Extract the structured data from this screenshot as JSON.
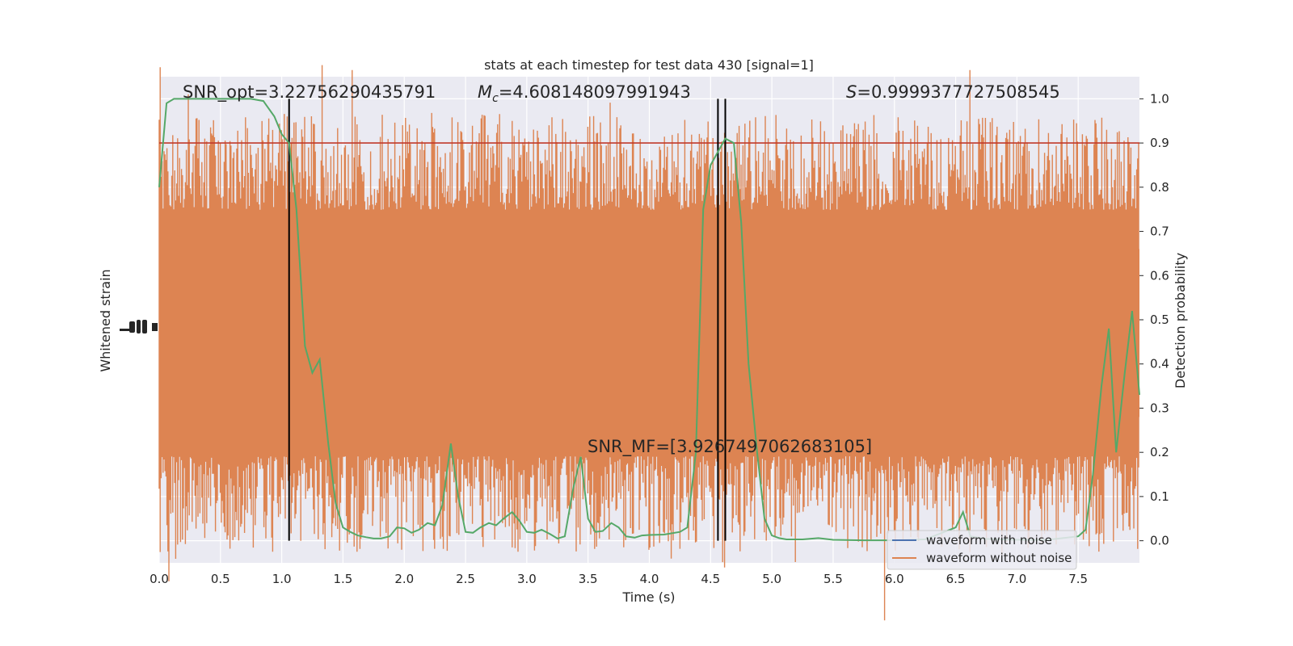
{
  "chart_data": {
    "type": "line",
    "title": "stats at each timestep for test data 430 [signal=1]",
    "xlabel": "Time (s)",
    "ylabel_left": "Whitened strain",
    "ylabel_right": "Detection probability",
    "xlim": [
      0.0,
      8.0
    ],
    "ylim_right": [
      -0.05,
      1.05
    ],
    "x_ticks": [
      "0.0",
      "0.5",
      "1.0",
      "1.5",
      "2.0",
      "2.5",
      "3.0",
      "3.5",
      "4.0",
      "4.5",
      "5.0",
      "5.5",
      "6.0",
      "6.5",
      "7.0",
      "7.5"
    ],
    "y_ticks_right": [
      "0.0",
      "0.1",
      "0.2",
      "0.3",
      "0.4",
      "0.5",
      "0.6",
      "0.7",
      "0.8",
      "0.9",
      "1.0"
    ],
    "grid": true,
    "background": "#eaeaf2",
    "annotations": {
      "snr_opt": "SNR_opt=3.22756290435791",
      "mc_symbol": "M",
      "mc_sub": "c",
      "mc_value": "=4.608148097991943",
      "s_symbol": "S",
      "s_value": "=0.9999377727508545",
      "snr_mf": "SNR_MF=[3.9267497062683105]"
    },
    "threshold": {
      "y": 0.9,
      "color": "#c0392b"
    },
    "vertical_lines": [
      1.06,
      4.56,
      4.62
    ],
    "series": [
      {
        "name": "waveform with noise",
        "color": "#4c72b0"
      },
      {
        "name": "waveform without noise",
        "color": "#dd8452"
      }
    ],
    "probability_series": {
      "color": "#55a868",
      "x": [
        0.0,
        0.06,
        0.12,
        0.25,
        0.5,
        0.75,
        0.85,
        0.94,
        1.0,
        1.06,
        1.12,
        1.19,
        1.25,
        1.31,
        1.38,
        1.44,
        1.5,
        1.56,
        1.62,
        1.69,
        1.75,
        1.81,
        1.88,
        1.94,
        2.0,
        2.06,
        2.12,
        2.19,
        2.25,
        2.31,
        2.38,
        2.44,
        2.5,
        2.56,
        2.62,
        2.69,
        2.75,
        2.81,
        2.88,
        2.94,
        3.0,
        3.06,
        3.12,
        3.19,
        3.25,
        3.31,
        3.38,
        3.44,
        3.5,
        3.56,
        3.62,
        3.69,
        3.75,
        3.81,
        3.88,
        3.94,
        4.0,
        4.12,
        4.25,
        4.31,
        4.38,
        4.44,
        4.5,
        4.56,
        4.62,
        4.69,
        4.75,
        4.81,
        4.88,
        4.94,
        5.0,
        5.06,
        5.12,
        5.25,
        5.38,
        5.5,
        5.75,
        6.0,
        6.25,
        6.5,
        6.56,
        6.62,
        6.75,
        7.0,
        7.25,
        7.5,
        7.56,
        7.62,
        7.69,
        7.75,
        7.81,
        7.88,
        7.94,
        8.0
      ],
      "y": [
        0.8,
        0.99,
        1.0,
        1.0,
        1.0,
        1.0,
        0.995,
        0.96,
        0.92,
        0.9,
        0.75,
        0.44,
        0.38,
        0.41,
        0.22,
        0.085,
        0.03,
        0.02,
        0.012,
        0.008,
        0.005,
        0.005,
        0.01,
        0.03,
        0.028,
        0.018,
        0.025,
        0.04,
        0.035,
        0.08,
        0.22,
        0.1,
        0.02,
        0.018,
        0.03,
        0.04,
        0.035,
        0.05,
        0.065,
        0.045,
        0.02,
        0.018,
        0.025,
        0.015,
        0.005,
        0.01,
        0.12,
        0.19,
        0.05,
        0.02,
        0.022,
        0.04,
        0.03,
        0.01,
        0.007,
        0.012,
        0.013,
        0.014,
        0.02,
        0.03,
        0.2,
        0.75,
        0.85,
        0.88,
        0.91,
        0.9,
        0.72,
        0.4,
        0.2,
        0.05,
        0.012,
        0.006,
        0.003,
        0.003,
        0.006,
        0.002,
        0.001,
        0.001,
        0.003,
        0.03,
        0.065,
        0.01,
        0.004,
        0.002,
        0.002,
        0.01,
        0.025,
        0.15,
        0.35,
        0.48,
        0.2,
        0.38,
        0.52,
        0.33
      ]
    }
  }
}
